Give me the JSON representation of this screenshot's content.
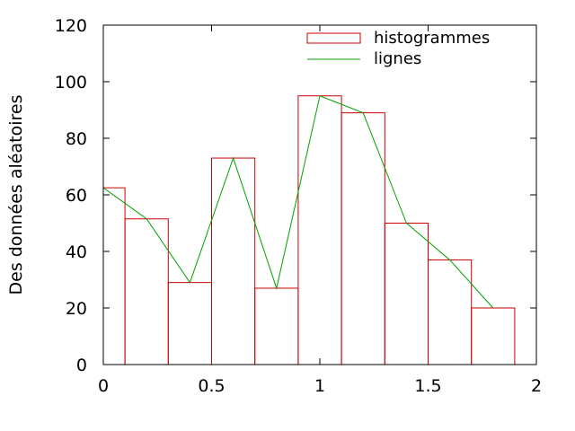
{
  "chart_data": {
    "type": "bar",
    "title": "",
    "xlabel": "",
    "ylabel": "Des données aléatoires",
    "xlim": [
      0,
      2
    ],
    "ylim": [
      0,
      120
    ],
    "xticks": [
      0,
      0.5,
      1,
      1.5,
      2
    ],
    "xtick_labels": [
      "0",
      "0.5",
      "1",
      "1.5",
      "2"
    ],
    "yticks": [
      0,
      20,
      40,
      60,
      80,
      100,
      120
    ],
    "ytick_labels": [
      "0",
      "20",
      "40",
      "60",
      "80",
      "100",
      "120"
    ],
    "grid": false,
    "legend_position": "top-right",
    "series": [
      {
        "name": "histogrammes",
        "kind": "histogram",
        "color": "#cc0000",
        "bar_width": 0.2,
        "x": [
          0,
          0.2,
          0.4,
          0.6,
          0.8,
          1.0,
          1.2,
          1.4,
          1.6,
          1.8
        ],
        "values": [
          62.5,
          51.5,
          29,
          73,
          27,
          95,
          89,
          50,
          37,
          20
        ]
      },
      {
        "name": "lignes",
        "kind": "line",
        "color": "#00a000",
        "x": [
          0,
          0.2,
          0.4,
          0.6,
          0.8,
          1.0,
          1.2,
          1.4,
          1.6,
          1.8
        ],
        "values": [
          62.5,
          51.5,
          29,
          73,
          27,
          95,
          89,
          50,
          37,
          20
        ]
      }
    ]
  }
}
